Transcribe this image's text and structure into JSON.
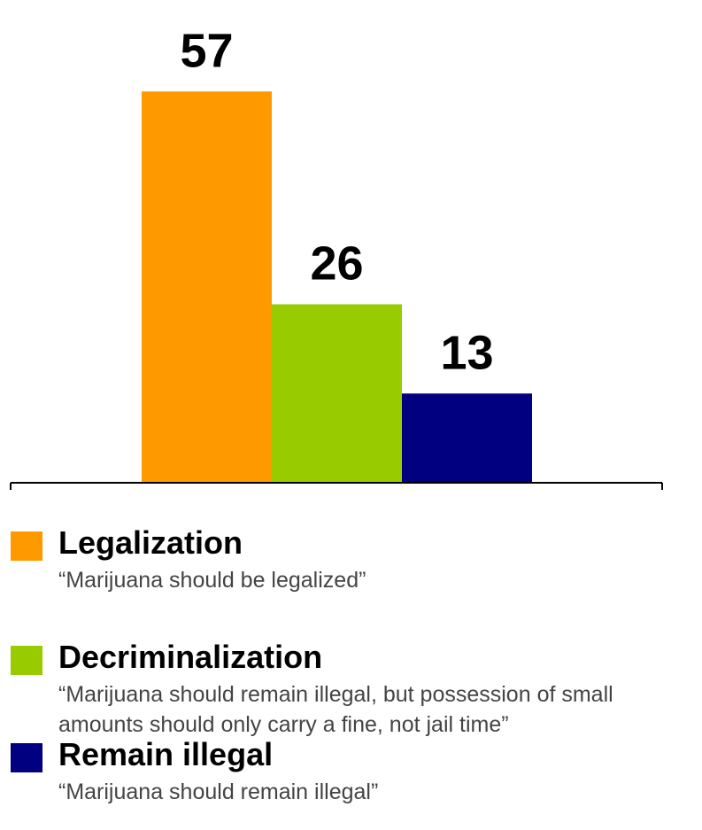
{
  "chart_data": {
    "type": "bar",
    "categories": [
      "Legalization",
      "Decriminalization",
      "Remain illegal"
    ],
    "values": [
      57,
      26,
      13
    ],
    "colors": [
      "#FF9900",
      "#99CC00",
      "#000080"
    ],
    "ylim": [
      0,
      80
    ],
    "grid": false,
    "legend_placement": "bottom"
  },
  "legend": [
    {
      "title": "Legalization",
      "desc": "“Marijuana should be legalized”",
      "color": "#FF9900"
    },
    {
      "title": "Decriminalization",
      "desc": "“Marijuana should remain illegal, but possession of small amounts should only carry a fine, not jail time”",
      "color": "#99CC00"
    },
    {
      "title": "Remain illegal",
      "desc": "“Marijuana should remain illegal”",
      "color": "#000080"
    }
  ]
}
